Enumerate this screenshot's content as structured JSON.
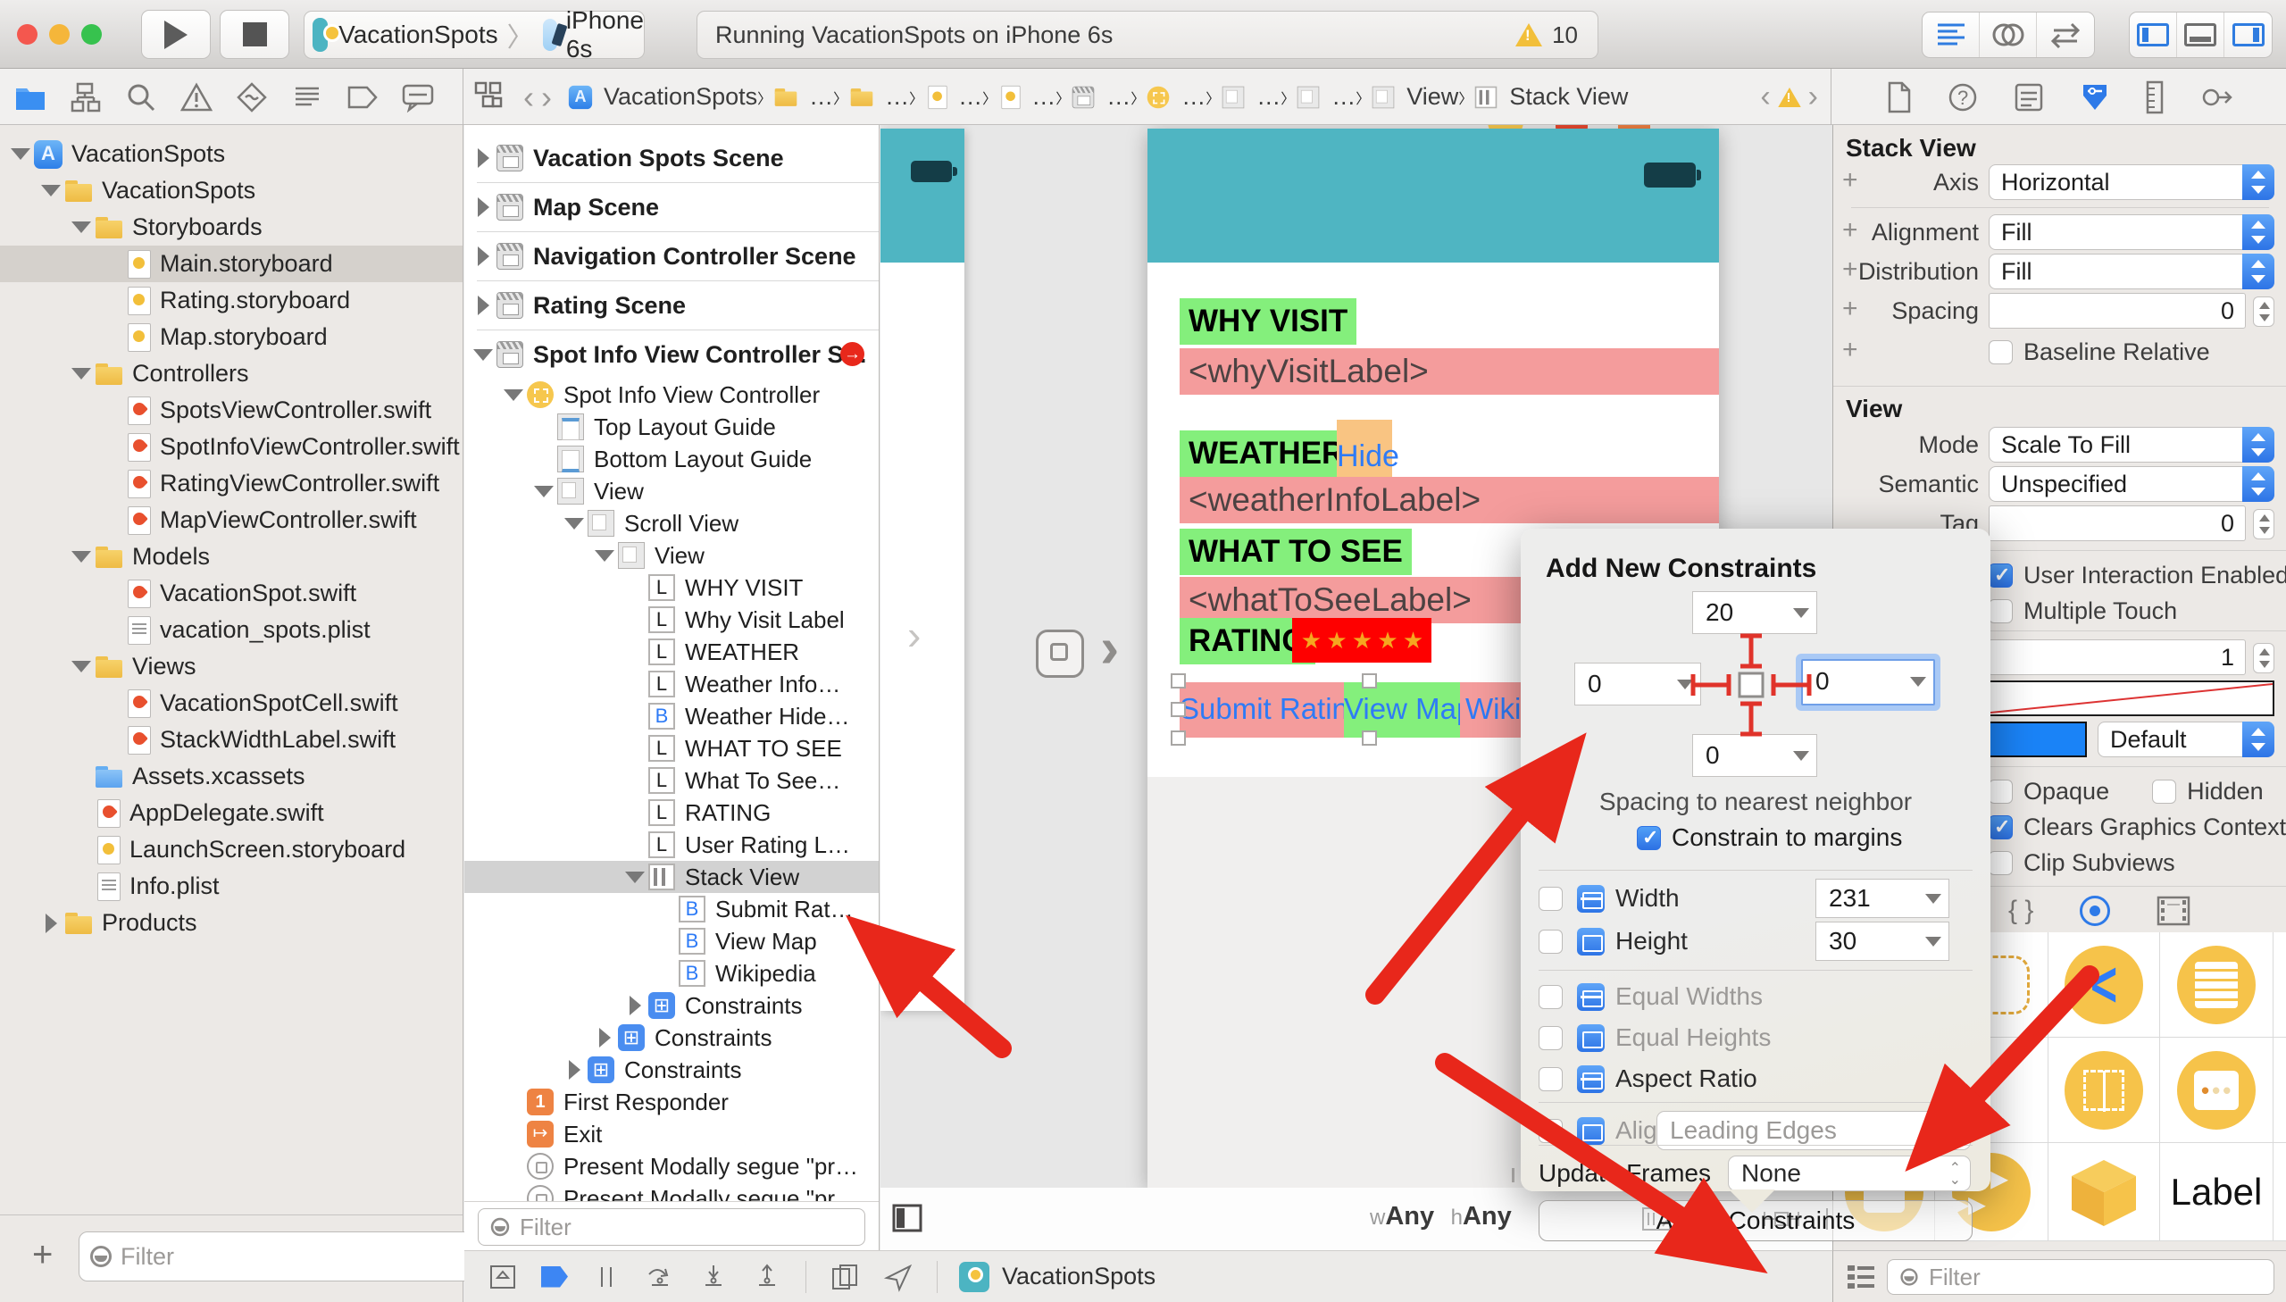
{
  "titlebar": {
    "scheme_project": "VacationSpots",
    "scheme_device": "iPhone 6s",
    "status_text": "Running VacationSpots on iPhone 6s",
    "warning_count": "10"
  },
  "jumpbar": {
    "crumbs": [
      {
        "icon": "project",
        "label": "VacationSpots"
      },
      {
        "icon": "folder",
        "label": "…"
      },
      {
        "icon": "folder",
        "label": "…"
      },
      {
        "icon": "storyboard",
        "label": "…"
      },
      {
        "icon": "storyboard",
        "label": "…"
      },
      {
        "icon": "scene",
        "label": "…"
      },
      {
        "icon": "view-controller",
        "label": "…"
      },
      {
        "icon": "view",
        "label": "…"
      },
      {
        "icon": "view",
        "label": "…"
      },
      {
        "icon": "view",
        "label": "View"
      },
      {
        "icon": "stack-view",
        "label": "Stack View"
      }
    ]
  },
  "navigator": {
    "filter_placeholder": "Filter",
    "items": [
      {
        "indent": 0,
        "icon": "project",
        "label": "VacationSpots",
        "disclosure": "open"
      },
      {
        "indent": 1,
        "icon": "folder",
        "label": "VacationSpots",
        "disclosure": "open"
      },
      {
        "indent": 2,
        "icon": "folder",
        "label": "Storyboards",
        "disclosure": "open"
      },
      {
        "indent": 3,
        "icon": "storyboard",
        "label": "Main.storyboard",
        "selected": true
      },
      {
        "indent": 3,
        "icon": "storyboard",
        "label": "Rating.storyboard"
      },
      {
        "indent": 3,
        "icon": "storyboard",
        "label": "Map.storyboard"
      },
      {
        "indent": 2,
        "icon": "folder",
        "label": "Controllers",
        "disclosure": "open"
      },
      {
        "indent": 3,
        "icon": "swift",
        "label": "SpotsViewController.swift"
      },
      {
        "indent": 3,
        "icon": "swift",
        "label": "SpotInfoViewController.swift"
      },
      {
        "indent": 3,
        "icon": "swift",
        "label": "RatingViewController.swift"
      },
      {
        "indent": 3,
        "icon": "swift",
        "label": "MapViewController.swift"
      },
      {
        "indent": 2,
        "icon": "folder",
        "label": "Models",
        "disclosure": "open"
      },
      {
        "indent": 3,
        "icon": "swift",
        "label": "VacationSpot.swift"
      },
      {
        "indent": 3,
        "icon": "plist",
        "label": "vacation_spots.plist"
      },
      {
        "indent": 2,
        "icon": "folder",
        "label": "Views",
        "disclosure": "open"
      },
      {
        "indent": 3,
        "icon": "swift",
        "label": "VacationSpotCell.swift"
      },
      {
        "indent": 3,
        "icon": "swift",
        "label": "StackWidthLabel.swift"
      },
      {
        "indent": 2,
        "icon": "assets",
        "label": "Assets.xcassets"
      },
      {
        "indent": 2,
        "icon": "swift",
        "label": "AppDelegate.swift"
      },
      {
        "indent": 2,
        "icon": "storyboard",
        "label": "LaunchScreen.storyboard"
      },
      {
        "indent": 2,
        "icon": "plist",
        "label": "Info.plist"
      },
      {
        "indent": 1,
        "icon": "folder",
        "label": "Products",
        "disclosure": "closed"
      }
    ]
  },
  "outline": {
    "filter_placeholder": "Filter",
    "items": [
      {
        "indent": 0,
        "icon": "scene",
        "label": "Vacation Spots Scene",
        "disclosure": "closed",
        "scene": true,
        "sep": true
      },
      {
        "indent": 0,
        "icon": "scene",
        "label": "Map Scene",
        "disclosure": "closed",
        "scene": true,
        "sep": true
      },
      {
        "indent": 0,
        "icon": "scene",
        "label": "Navigation Controller Scene",
        "disclosure": "closed",
        "scene": true,
        "sep": true
      },
      {
        "indent": 0,
        "icon": "scene",
        "label": "Rating Scene",
        "disclosure": "closed",
        "scene": true,
        "sep": true
      },
      {
        "indent": 0,
        "icon": "scene",
        "label": "Spot Info View Controller S…",
        "disclosure": "open",
        "scene": true,
        "badge": "→"
      },
      {
        "indent": 1,
        "icon": "view-controller",
        "label": "Spot Info View Controller",
        "disclosure": "open"
      },
      {
        "indent": 2,
        "icon": "guide-top",
        "label": "Top Layout Guide"
      },
      {
        "indent": 2,
        "icon": "guide-bottom",
        "label": "Bottom Layout Guide"
      },
      {
        "indent": 2,
        "icon": "view",
        "label": "View",
        "disclosure": "open"
      },
      {
        "indent": 3,
        "icon": "scroll-view",
        "label": "Scroll View",
        "disclosure": "open"
      },
      {
        "indent": 4,
        "icon": "view",
        "label": "View",
        "disclosure": "open"
      },
      {
        "indent": 5,
        "icon": "label",
        "label": "WHY VISIT"
      },
      {
        "indent": 5,
        "icon": "label",
        "label": "Why Visit Label"
      },
      {
        "indent": 5,
        "icon": "label",
        "label": "WEATHER"
      },
      {
        "indent": 5,
        "icon": "label",
        "label": "Weather Info…"
      },
      {
        "indent": 5,
        "icon": "button",
        "label": "Weather Hide…"
      },
      {
        "indent": 5,
        "icon": "label",
        "label": "WHAT TO SEE"
      },
      {
        "indent": 5,
        "icon": "label",
        "label": "What To See…"
      },
      {
        "indent": 5,
        "icon": "label",
        "label": "RATING"
      },
      {
        "indent": 5,
        "icon": "label",
        "label": "User Rating L…"
      },
      {
        "indent": 5,
        "icon": "stack-view",
        "label": "Stack View",
        "disclosure": "open",
        "selected": true
      },
      {
        "indent": 6,
        "icon": "button",
        "label": "Submit Rat…"
      },
      {
        "indent": 6,
        "icon": "button",
        "label": "View Map"
      },
      {
        "indent": 6,
        "icon": "button",
        "label": "Wikipedia"
      },
      {
        "indent": 5,
        "icon": "constraints",
        "label": "Constraints",
        "disclosure": "closed"
      },
      {
        "indent": 4,
        "icon": "constraints",
        "label": "Constraints",
        "disclosure": "closed"
      },
      {
        "indent": 3,
        "icon": "constraints",
        "label": "Constraints",
        "disclosure": "closed"
      },
      {
        "indent": 1,
        "icon": "first-responder",
        "label": "First Responder"
      },
      {
        "indent": 1,
        "icon": "exit",
        "label": "Exit"
      },
      {
        "indent": 1,
        "icon": "segue",
        "label": "Present Modally segue \"pr…"
      },
      {
        "indent": 1,
        "icon": "segue",
        "label": "Present Modally segue \"pr…"
      }
    ]
  },
  "canvas": {
    "why_visit": "WHY VISIT",
    "why_visit_placeholder": "<whyVisitLabel>",
    "weather": "WEATHER",
    "hide_button": "Hide",
    "weather_placeholder": "<weatherInfoLabel>",
    "what_to_see": "WHAT TO SEE",
    "what_to_see_placeholder": "<whatToSeeLabel>",
    "rating": "RATING",
    "stars": "★ ★ ★ ★ ★",
    "submit_rating": "Submit Rating",
    "view_map": "View Map",
    "wikipedia": "Wikipedia",
    "size_w_key": "w",
    "size_w_value": "Any",
    "size_h_key": "h",
    "size_h_value": "Any"
  },
  "debugbar": {
    "device_name": "VacationSpots"
  },
  "popover": {
    "title": "Add New Constraints",
    "top_value": "20",
    "left_value": "0",
    "right_value": "0",
    "bottom_value": "0",
    "spacing_caption": "Spacing to nearest neighbor",
    "constrain_margins_label": "Constrain to margins",
    "width_label": "Width",
    "width_value": "231",
    "height_label": "Height",
    "height_value": "30",
    "equal_widths_label": "Equal Widths",
    "equal_heights_label": "Equal Heights",
    "aspect_ratio_label": "Aspect Ratio",
    "align_label": "Align",
    "align_value": "Leading Edges",
    "update_frames_label": "Update Frames",
    "update_frames_value": "None",
    "add_button_label": "Add 4 Constraints"
  },
  "inspector": {
    "stack_view": {
      "title": "Stack View",
      "axis_label": "Axis",
      "axis_value": "Horizontal",
      "alignment_label": "Alignment",
      "alignment_value": "Fill",
      "distribution_label": "Distribution",
      "distribution_value": "Fill",
      "spacing_label": "Spacing",
      "spacing_value": "0",
      "baseline_label": "Baseline Relative"
    },
    "view": {
      "title": "View",
      "mode_label": "Mode",
      "mode_value": "Scale To Fill",
      "semantic_label": "Semantic",
      "semantic_value": "Unspecified",
      "tag_label": "Tag",
      "tag_value": "0",
      "interaction_label": "User Interaction Enabled",
      "multiple_touch_label": "Multiple Touch",
      "alpha_value": "1",
      "tint_value": "Default",
      "opaque_label": "Opaque",
      "hidden_label": "Hidden",
      "clears_label": "Clears Graphics Context",
      "clip_label": "Clip Subviews"
    }
  },
  "library": {
    "filter_placeholder": "Filter",
    "label_cell": "Label"
  }
}
